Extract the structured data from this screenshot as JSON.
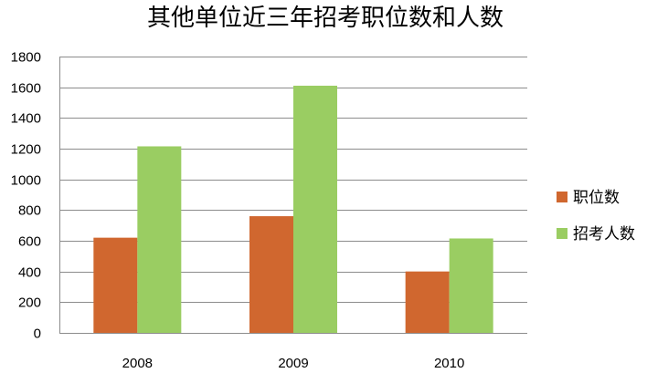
{
  "chart_data": {
    "type": "bar",
    "title": "其他单位近三年招考职位数和人数",
    "categories": [
      "2008",
      "2009",
      "2010"
    ],
    "series": [
      {
        "name": "职位数",
        "values": [
          620,
          760,
          400
        ],
        "color": "#D0672F"
      },
      {
        "name": "招考人数",
        "values": [
          1215,
          1610,
          615
        ],
        "color": "#9ACD62"
      }
    ],
    "xlabel": "",
    "ylabel": "",
    "ylim": [
      0,
      1800
    ],
    "yticks": [
      "0",
      "200",
      "400",
      "600",
      "800",
      "1000",
      "1200",
      "1400",
      "1600",
      "1800"
    ],
    "grid": true,
    "legend_position": "right"
  }
}
